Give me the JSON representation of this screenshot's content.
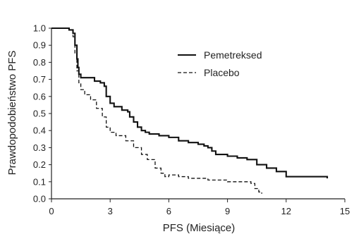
{
  "chart_data": {
    "type": "line",
    "title": "",
    "xlabel": "PFS (Miesiące)",
    "ylabel": "Prawdopodobieństwo PFS",
    "xlim": [
      0,
      15
    ],
    "ylim": [
      0,
      1.0
    ],
    "xticks": [
      "0",
      "3",
      "6",
      "9",
      "12",
      "15"
    ],
    "yticks": [
      "0.0",
      "0.1",
      "0.2",
      "0.3",
      "0.4",
      "0.5",
      "0.6",
      "0.7",
      "0.8",
      "0.9",
      "1.0"
    ],
    "grid": false,
    "legend": "top-right",
    "series": [
      {
        "name": "Pemetreksed",
        "style": "solid",
        "color": "#111111",
        "x": [
          0,
          0.9,
          1.1,
          1.2,
          1.3,
          1.35,
          1.4,
          1.5,
          2.2,
          2.5,
          2.7,
          2.8,
          3.0,
          3.2,
          3.6,
          3.9,
          4.0,
          4.2,
          4.4,
          4.6,
          4.8,
          5.0,
          5.5,
          6.0,
          6.5,
          7.0,
          7.5,
          7.8,
          8.0,
          8.2,
          8.4,
          9.0,
          9.5,
          10.0,
          10.5,
          11.0,
          11.5,
          12.0,
          14.1
        ],
        "y": [
          1.0,
          0.99,
          0.97,
          0.9,
          0.82,
          0.77,
          0.73,
          0.71,
          0.69,
          0.68,
          0.66,
          0.6,
          0.56,
          0.54,
          0.52,
          0.51,
          0.48,
          0.45,
          0.42,
          0.4,
          0.39,
          0.38,
          0.37,
          0.36,
          0.34,
          0.33,
          0.32,
          0.31,
          0.3,
          0.28,
          0.26,
          0.25,
          0.24,
          0.23,
          0.2,
          0.18,
          0.16,
          0.13,
          0.12
        ]
      },
      {
        "name": "Placebo",
        "style": "dashed",
        "color": "#111111",
        "x": [
          0,
          0.9,
          1.1,
          1.2,
          1.3,
          1.4,
          1.5,
          1.7,
          2.0,
          2.3,
          2.6,
          2.8,
          3.0,
          3.3,
          3.8,
          4.2,
          4.6,
          4.9,
          5.3,
          5.6,
          5.8,
          6.0,
          6.5,
          7.0,
          8.0,
          9.0,
          10.2,
          10.4,
          10.6,
          10.75
        ],
        "y": [
          1.0,
          0.99,
          0.95,
          0.85,
          0.75,
          0.68,
          0.64,
          0.61,
          0.58,
          0.53,
          0.48,
          0.42,
          0.39,
          0.37,
          0.34,
          0.3,
          0.26,
          0.23,
          0.18,
          0.15,
          0.13,
          0.14,
          0.13,
          0.12,
          0.11,
          0.1,
          0.09,
          0.06,
          0.04,
          0.03
        ]
      }
    ]
  }
}
